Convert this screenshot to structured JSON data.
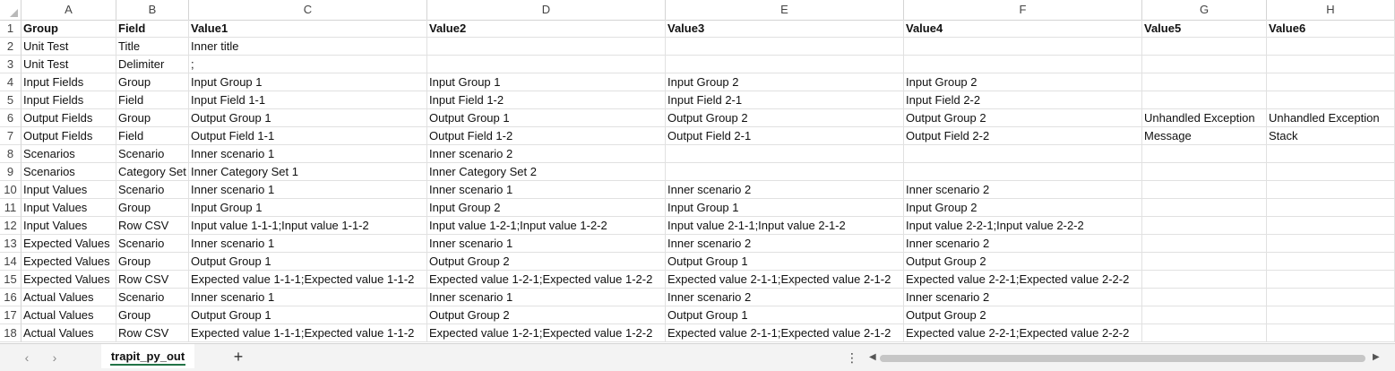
{
  "columns": [
    {
      "letter": "A"
    },
    {
      "letter": "B"
    },
    {
      "letter": "C"
    },
    {
      "letter": "D"
    },
    {
      "letter": "E"
    },
    {
      "letter": "F"
    },
    {
      "letter": "G"
    },
    {
      "letter": "H"
    }
  ],
  "rows": [
    {
      "num": "1",
      "cells": [
        "Group",
        "Field",
        "Value1",
        "Value2",
        "Value3",
        "Value4",
        "Value5",
        "Value6"
      ]
    },
    {
      "num": "2",
      "cells": [
        "Unit Test",
        "Title",
        "Inner title",
        "",
        "",
        "",
        "",
        ""
      ]
    },
    {
      "num": "3",
      "cells": [
        "Unit Test",
        "Delimiter",
        ";",
        "",
        "",
        "",
        "",
        ""
      ]
    },
    {
      "num": "4",
      "cells": [
        "Input Fields",
        "Group",
        "Input Group 1",
        "Input Group 1",
        "Input Group 2",
        "Input Group 2",
        "",
        ""
      ]
    },
    {
      "num": "5",
      "cells": [
        "Input Fields",
        "Field",
        "Input Field 1-1",
        "Input Field 1-2",
        "Input Field 2-1",
        "Input Field 2-2",
        "",
        ""
      ]
    },
    {
      "num": "6",
      "cells": [
        "Output Fields",
        "Group",
        "Output Group 1",
        "Output Group 1",
        "Output Group 2",
        "Output Group 2",
        "Unhandled Exception",
        "Unhandled Exception"
      ]
    },
    {
      "num": "7",
      "cells": [
        "Output Fields",
        "Field",
        "Output Field 1-1",
        "Output Field 1-2",
        "Output Field 2-1",
        "Output Field 2-2",
        "Message",
        "Stack"
      ]
    },
    {
      "num": "8",
      "cells": [
        "Scenarios",
        "Scenario",
        "Inner scenario 1",
        "Inner scenario 2",
        "",
        "",
        "",
        ""
      ]
    },
    {
      "num": "9",
      "cells": [
        "Scenarios",
        "Category Set",
        "Inner Category Set 1",
        "Inner Category Set 2",
        "",
        "",
        "",
        ""
      ]
    },
    {
      "num": "10",
      "cells": [
        "Input Values",
        "Scenario",
        "Inner scenario 1",
        "Inner scenario 1",
        "Inner scenario 2",
        "Inner scenario 2",
        "",
        ""
      ]
    },
    {
      "num": "11",
      "cells": [
        "Input Values",
        "Group",
        "Input Group 1",
        "Input Group 2",
        "Input Group 1",
        "Input Group 2",
        "",
        ""
      ]
    },
    {
      "num": "12",
      "cells": [
        "Input Values",
        "Row CSV",
        "Input value 1-1-1;Input value 1-1-2",
        "Input value 1-2-1;Input value 1-2-2",
        "Input value 2-1-1;Input value 2-1-2",
        "Input value 2-2-1;Input value 2-2-2",
        "",
        ""
      ]
    },
    {
      "num": "13",
      "cells": [
        "Expected Values",
        "Scenario",
        "Inner scenario 1",
        "Inner scenario 1",
        "Inner scenario 2",
        "Inner scenario 2",
        "",
        ""
      ]
    },
    {
      "num": "14",
      "cells": [
        "Expected Values",
        "Group",
        "Output Group 1",
        "Output Group 2",
        "Output Group 1",
        "Output Group 2",
        "",
        ""
      ]
    },
    {
      "num": "15",
      "cells": [
        "Expected Values",
        "Row CSV",
        "Expected value 1-1-1;Expected value 1-1-2",
        "Expected value 1-2-1;Expected value 1-2-2",
        "Expected value 2-1-1;Expected value 2-1-2",
        "Expected value 2-2-1;Expected value 2-2-2",
        "",
        ""
      ]
    },
    {
      "num": "16",
      "cells": [
        "Actual Values",
        "Scenario",
        "Inner scenario 1",
        "Inner scenario 1",
        "Inner scenario 2",
        "Inner scenario 2",
        "",
        ""
      ]
    },
    {
      "num": "17",
      "cells": [
        "Actual Values",
        "Group",
        "Output Group 1",
        "Output Group 2",
        "Output Group 1",
        "Output Group 2",
        "",
        ""
      ]
    },
    {
      "num": "18",
      "cells": [
        "Actual Values",
        "Row CSV",
        "Expected value 1-1-1;Expected value 1-1-2",
        "Expected value 1-2-1;Expected value 1-2-2",
        "Expected value 2-1-1;Expected value 2-1-2",
        "Expected value 2-2-1;Expected value 2-2-2",
        "",
        ""
      ]
    }
  ],
  "sheet_tab": {
    "label": "trapit_py_out"
  },
  "nav": {
    "prev": "‹",
    "next": "›",
    "add": "+",
    "more": "⋮",
    "scroll_left": "◀",
    "scroll_right": "▶"
  },
  "colors": {
    "accent": "#217346",
    "grid": "#e1e1e1",
    "header_border": "#d4d4d4"
  }
}
